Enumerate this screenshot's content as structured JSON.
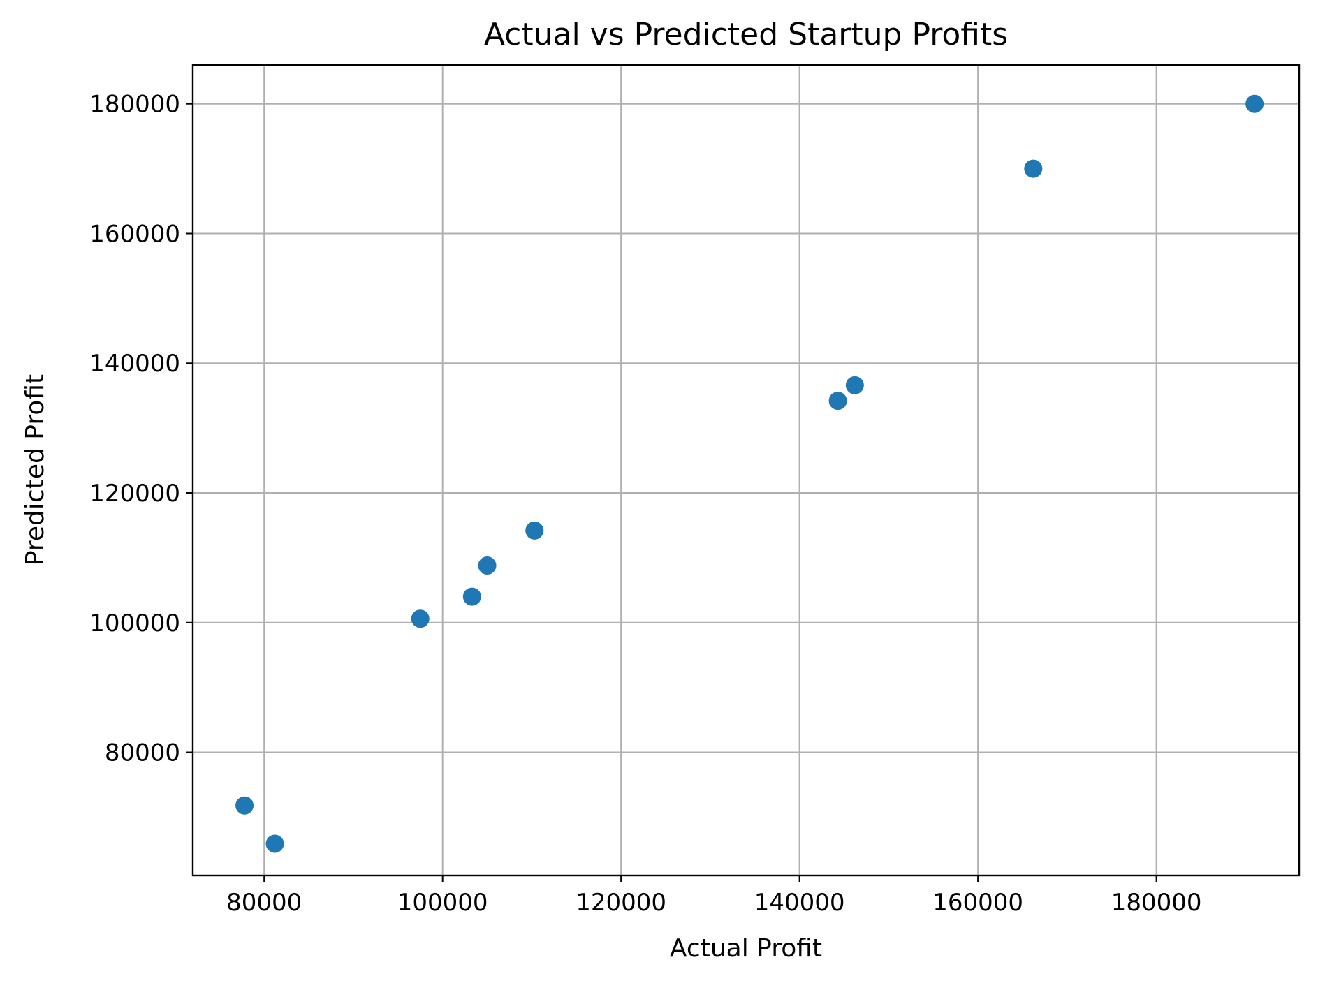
{
  "chart_data": {
    "type": "scatter",
    "title": "Actual vs Predicted Startup Profits",
    "xlabel": "Actual Profit",
    "ylabel": "Predicted Profit",
    "xlim": [
      72000,
      196000
    ],
    "ylim": [
      61000,
      186000
    ],
    "xticks": [
      80000,
      100000,
      120000,
      140000,
      160000,
      180000
    ],
    "yticks": [
      80000,
      100000,
      120000,
      140000,
      160000,
      180000
    ],
    "xtick_labels": [
      "80000",
      "100000",
      "120000",
      "140000",
      "160000",
      "180000"
    ],
    "ytick_labels": [
      "80000",
      "100000",
      "120000",
      "140000",
      "160000",
      "180000"
    ],
    "grid": true,
    "series": [
      {
        "color": "#1f77b4",
        "points": [
          {
            "x": 77800,
            "y": 71800
          },
          {
            "x": 81200,
            "y": 65900
          },
          {
            "x": 97500,
            "y": 100600
          },
          {
            "x": 103300,
            "y": 104000
          },
          {
            "x": 105000,
            "y": 108800
          },
          {
            "x": 110300,
            "y": 114200
          },
          {
            "x": 144300,
            "y": 134200
          },
          {
            "x": 146200,
            "y": 136600
          },
          {
            "x": 166200,
            "y": 170000
          },
          {
            "x": 191000,
            "y": 180000
          }
        ]
      }
    ]
  }
}
